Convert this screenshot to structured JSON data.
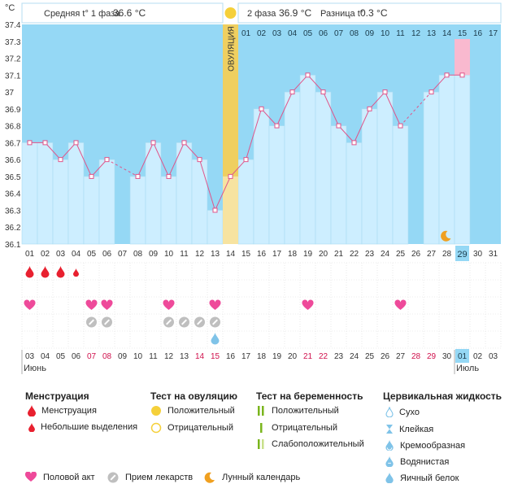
{
  "header": {
    "unit": "°C",
    "phase1": "Средняя t° 1 фаза",
    "phase1_value": "36.6 °C",
    "phase2": "2 фаза",
    "phase2_value": "36.9 °C",
    "diff": "Разница t°",
    "diff_value": "0.3 °C",
    "ovulation_label": "ОВУЛЯЦИЯ"
  },
  "chart_data": {
    "type": "line",
    "title": "",
    "ylabel": "°C",
    "ylim": [
      36.1,
      37.4
    ],
    "yticks": [
      "36.1",
      "36.2",
      "36.3",
      "36.4",
      "36.5",
      "36.6",
      "36.7",
      "36.8",
      "36.9",
      "37",
      "37.1",
      "37.2",
      "37.3",
      "37.4"
    ],
    "cycle_days": [
      "01",
      "02",
      "03",
      "04",
      "05",
      "06",
      "07",
      "08",
      "09",
      "10",
      "11",
      "12",
      "13",
      "14",
      "15",
      "16",
      "17"
    ],
    "dates": [
      "01",
      "02",
      "03",
      "04",
      "05",
      "06",
      "07",
      "08",
      "09",
      "10",
      "11",
      "12",
      "13",
      "14",
      "15",
      "16",
      "17",
      "18",
      "19",
      "20",
      "21",
      "22",
      "23",
      "24",
      "25",
      "26",
      "27",
      "28",
      "29",
      "30",
      "31",
      "03",
      "04",
      "05",
      "06",
      "07",
      "08",
      "09",
      "10",
      "11",
      "12",
      "13",
      "14",
      "15",
      "16",
      "17",
      "18",
      "19",
      "20",
      "21",
      "22",
      "23",
      "24",
      "25",
      "26",
      "27",
      "28",
      "29",
      "30",
      "01",
      "02",
      "03"
    ],
    "temps": [
      36.7,
      36.7,
      36.6,
      36.7,
      36.5,
      36.6,
      null,
      36.5,
      36.7,
      36.5,
      36.7,
      36.6,
      36.3,
      36.5,
      36.6,
      36.9,
      36.8,
      37.0,
      37.1,
      37.0,
      36.8,
      36.7,
      36.9,
      37.0,
      36.8,
      null,
      37.0,
      37.1,
      37.1,
      null,
      null
    ],
    "ovulation_day_index": 13,
    "highlight_day_index": 28,
    "month_labels": [
      "Июнь",
      "Июль"
    ]
  },
  "markers": {
    "menstruation": [
      0,
      1,
      2
    ],
    "light_spotting": [
      3
    ],
    "intercourse": [
      0,
      4,
      5,
      9,
      12,
      18,
      24
    ],
    "medication": [
      4,
      5,
      9,
      10,
      11,
      12
    ],
    "egg_white": [
      12
    ],
    "moon": [
      27
    ],
    "positive_ovulation": [
      13
    ]
  },
  "legend": {
    "menstruation": {
      "title": "Менструация",
      "items": [
        "Менструация",
        "Небольшие выделения"
      ]
    },
    "ovulation_test": {
      "title": "Тест на овуляцию",
      "items": [
        "Положительный",
        "Отрицательный"
      ]
    },
    "pregnancy_test": {
      "title": "Тест на беременность",
      "items": [
        "Положительный",
        "Отрицательный",
        "Слабоположительный"
      ]
    },
    "cervical": {
      "title": "Цервикальная жидкость",
      "items": [
        "Сухо",
        "Клейкая",
        "Кремообразная",
        "Водянистая",
        "Яичный белок"
      ]
    },
    "bottom": [
      "Половой акт",
      "Прием лекарств",
      "Лунный календарь"
    ]
  },
  "colors": {
    "bg_blue": "#95D8F5",
    "bar_blue": "#CDEEFF",
    "bar_stroke": "#A9DCF2",
    "line": "#E0548A",
    "ovulation": "#F7E3A0",
    "ovulation_dark": "#EFCF60",
    "highlight": "#F9B9CF",
    "blood": "#E8202F",
    "heart": "#EE4A9A",
    "pill": "#BFBFBF",
    "moon": "#F0A020",
    "egg": "#7FC3E8",
    "red_text": "#D0104C",
    "preg_pos": "#7AB51D",
    "preg_weak": "#C8E08A"
  }
}
